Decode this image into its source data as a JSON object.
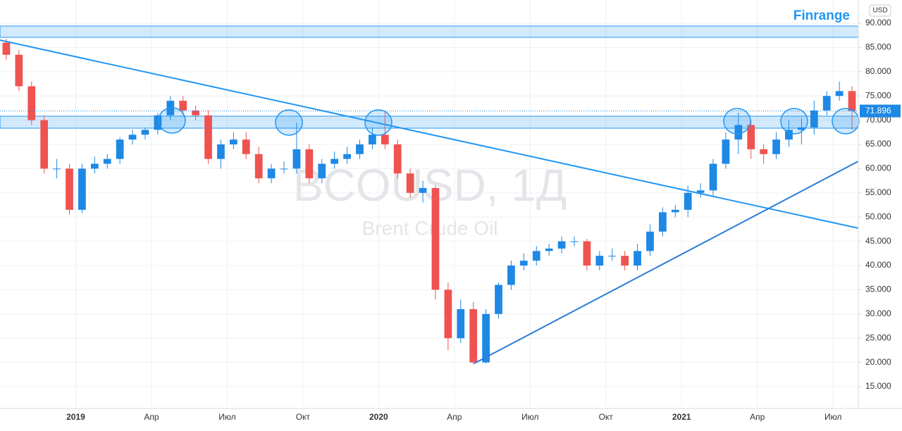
{
  "chart_data": {
    "type": "candlestick",
    "title": "BCOUSD, 1Д",
    "subtitle": "Brent Crude Oil",
    "brand": "Finrange",
    "currency": "USD",
    "last_price": {
      "value": 71.896,
      "label": "71.896"
    },
    "up_color": "#1e88e5",
    "down_color": "#ef5350",
    "categories": [
      null,
      null,
      null,
      null,
      null,
      null,
      "2019",
      null,
      null,
      null,
      null,
      null,
      "Апр",
      null,
      null,
      null,
      null,
      null,
      "Июл",
      null,
      null,
      null,
      null,
      null,
      "Окт",
      null,
      null,
      null,
      null,
      null,
      "2020",
      null,
      null,
      null,
      null,
      null,
      "Апр",
      null,
      null,
      null,
      null,
      null,
      "Июл",
      null,
      null,
      null,
      null,
      null,
      "Окт",
      null,
      null,
      null,
      null,
      null,
      "2021",
      null,
      null,
      null,
      null,
      null,
      "Апр",
      null,
      null,
      null,
      null,
      null,
      "Июл",
      null
    ],
    "open": [
      86,
      83.5,
      77,
      70,
      60,
      60,
      51.5,
      60,
      61,
      62,
      66,
      67,
      68,
      71,
      74,
      72,
      71,
      62,
      65,
      66,
      63,
      58,
      60,
      60,
      64,
      58,
      61,
      62,
      63,
      65,
      67,
      65,
      59,
      55,
      56,
      35,
      25,
      31,
      20,
      30,
      36,
      40,
      41,
      43,
      43.5,
      45,
      45,
      40,
      42,
      42,
      40,
      43,
      47,
      51,
      51.5,
      55,
      55.5,
      61,
      66,
      69,
      64,
      63,
      66,
      68,
      68.5,
      72,
      75,
      76
    ],
    "high": [
      86.8,
      84.5,
      78,
      71,
      62,
      61,
      61,
      62.5,
      63,
      66.5,
      68,
      68.5,
      71.5,
      75,
      75,
      73,
      72,
      66,
      67.5,
      67.5,
      64.5,
      61,
      61.5,
      69.5,
      65,
      62,
      63.5,
      64.5,
      66,
      68.5,
      71.8,
      66,
      60,
      57.5,
      56.5,
      36.5,
      33,
      32.5,
      31,
      36.5,
      41,
      42.5,
      44,
      44.5,
      46,
      46,
      45.5,
      43,
      43.5,
      43,
      44.5,
      48.5,
      52,
      52.5,
      56.5,
      57,
      62,
      67.5,
      71.5,
      70,
      65,
      67.5,
      70,
      70.5,
      74,
      76,
      78,
      77
    ],
    "low": [
      82.5,
      76,
      69,
      59,
      58,
      50.5,
      50.8,
      59,
      60,
      61,
      65,
      66,
      67,
      70,
      71,
      70,
      61,
      60,
      64,
      62,
      57,
      57,
      59,
      59,
      57,
      57,
      60,
      61,
      62,
      64,
      64,
      58,
      54,
      53,
      33,
      22.5,
      24,
      19.5,
      19.8,
      29,
      35,
      39,
      40,
      42,
      42.5,
      44,
      39,
      39,
      41,
      39,
      39,
      42,
      46,
      50,
      50,
      54,
      54.5,
      60,
      63,
      62,
      61,
      62,
      64.5,
      65,
      67,
      71,
      74,
      68
    ],
    "close": [
      83.5,
      77,
      70,
      60,
      60,
      51.5,
      60,
      61,
      62,
      66,
      67,
      68,
      71,
      74,
      72,
      71,
      62,
      65,
      66,
      63,
      58,
      60,
      60,
      64,
      58,
      61,
      62,
      63,
      65,
      67,
      65,
      59,
      55,
      56,
      35,
      25,
      31,
      20,
      30,
      36,
      40,
      41,
      43,
      43.5,
      45,
      45,
      40,
      42,
      42,
      40,
      43,
      47,
      51,
      51.5,
      55,
      55.5,
      61,
      66,
      69,
      64,
      63,
      66,
      68,
      68.5,
      72,
      75,
      76,
      71.9
    ],
    "ylim": [
      10.5,
      94.8
    ],
    "yticks": [
      {
        "value": 15,
        "label": "15.000"
      },
      {
        "value": 20,
        "label": "20.000"
      },
      {
        "value": 25,
        "label": "25.000"
      },
      {
        "value": 30,
        "label": "30.000"
      },
      {
        "value": 35,
        "label": "35.000"
      },
      {
        "value": 40,
        "label": "40.000"
      },
      {
        "value": 45,
        "label": "45.000"
      },
      {
        "value": 50,
        "label": "50.000"
      },
      {
        "value": 55,
        "label": "55.000"
      },
      {
        "value": 60,
        "label": "60.000"
      },
      {
        "value": 65,
        "label": "65.000"
      },
      {
        "value": 70,
        "label": "70.000"
      },
      {
        "value": 75,
        "label": "75.000"
      },
      {
        "value": 80,
        "label": "80.000"
      },
      {
        "value": 85,
        "label": "85.000"
      },
      {
        "value": 90,
        "label": "90.000"
      }
    ],
    "grid": true
  }
}
